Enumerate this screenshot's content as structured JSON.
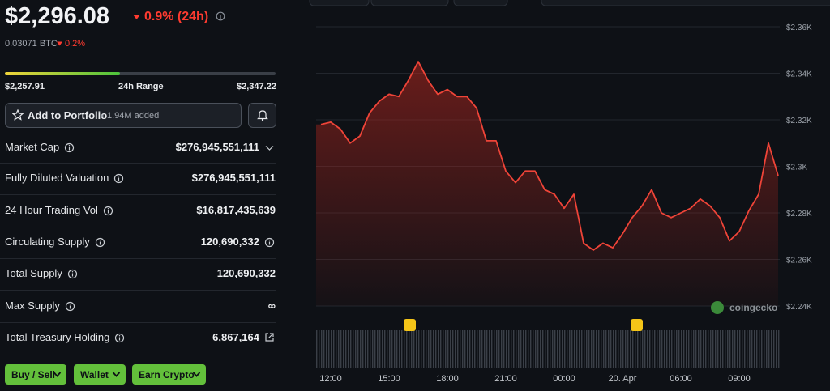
{
  "price": {
    "value": "$2,296.08",
    "change": "0.9% (24h)",
    "btc": "0.03071 BTC",
    "btc_change": "0.2%"
  },
  "range": {
    "low": "$2,257.91",
    "label": "24h Range",
    "high": "$2,347.22"
  },
  "portfolio": {
    "button": "Add to Portfolio",
    "added": "1.94M added"
  },
  "stats": [
    {
      "label": "Market Cap",
      "value": "$276,945,551,111"
    },
    {
      "label": "Fully Diluted Valuation",
      "value": "$276,945,551,111"
    },
    {
      "label": "24 Hour Trading Vol",
      "value": "$16,817,435,639"
    },
    {
      "label": "Circulating Supply",
      "value": "120,690,332"
    },
    {
      "label": "Total Supply",
      "value": "120,690,332"
    },
    {
      "label": "Max Supply",
      "value": "∞"
    },
    {
      "label": "Total Treasury Holding",
      "value": "6,867,164"
    }
  ],
  "buttons": [
    "Buy / Sell",
    "Wallet",
    "Earn Crypto"
  ],
  "watermark": "coingecko",
  "chart_data": {
    "type": "line",
    "color": "#ef4438",
    "grid": true,
    "categories": [
      null,
      "12:00",
      null,
      null,
      null,
      null,
      null,
      "15:00",
      null,
      null,
      null,
      null,
      null,
      "18:00",
      null,
      null,
      null,
      null,
      null,
      "21:00",
      null,
      null,
      null,
      null,
      null,
      "00:00",
      null,
      null,
      null,
      null,
      null,
      "20. Apr",
      null,
      null,
      null,
      null,
      null,
      "06:00",
      null,
      null,
      null,
      null,
      null,
      "09:00",
      null,
      null,
      null,
      null
    ],
    "values": [
      2318,
      2319,
      2316,
      2310,
      2313,
      2323,
      2328,
      2331,
      2330,
      2337,
      2345,
      2337,
      2331,
      2333,
      2330,
      2330,
      2325,
      2311,
      2311,
      2298,
      2293,
      2298,
      2298,
      2290,
      2288,
      2282,
      2288,
      2267,
      2264,
      2267,
      2265,
      2271,
      2278,
      2283,
      2290,
      2280,
      2278,
      2280,
      2282,
      2286,
      2283,
      2278,
      2268,
      2272,
      2281,
      2288,
      2310,
      2296
    ],
    "ylim": [
      2240,
      2360
    ],
    "yticks": [
      {
        "value": 2240,
        "label": "$2.24K"
      },
      {
        "value": 2260,
        "label": "$2.26K"
      },
      {
        "value": 2280,
        "label": "$2.28K"
      },
      {
        "value": 2300,
        "label": "$2.3K"
      },
      {
        "value": 2320,
        "label": "$2.32K"
      },
      {
        "value": 2340,
        "label": "$2.34K"
      },
      {
        "value": 2360,
        "label": "$2.36K"
      }
    ]
  }
}
